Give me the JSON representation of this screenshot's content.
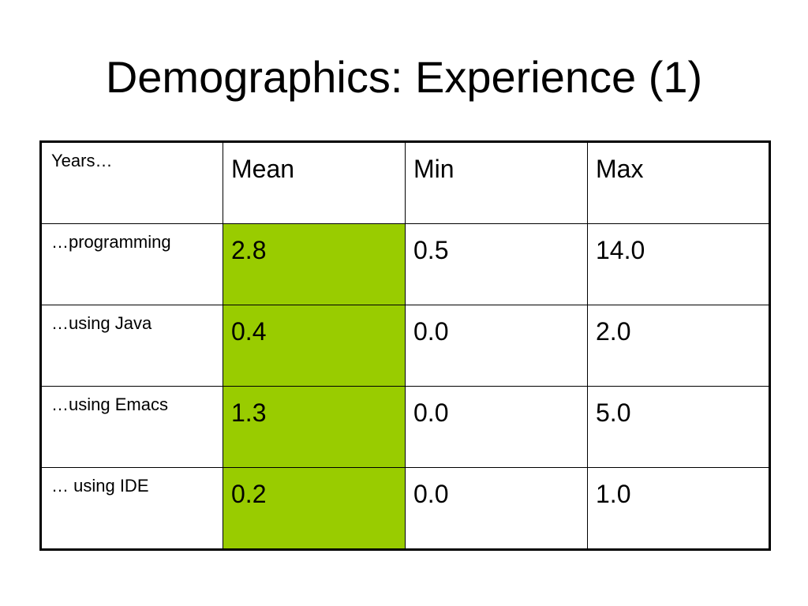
{
  "title": "Demographics: Experience (1)",
  "highlight_color": "#99cc00",
  "table": {
    "headers": {
      "label": "Years…",
      "mean": "Mean",
      "min": "Min",
      "max": "Max"
    },
    "rows": [
      {
        "label": "…programming",
        "mean": "2.8",
        "min": "0.5",
        "max": "14.0"
      },
      {
        "label": "…using Java",
        "mean": "0.4",
        "min": "0.0",
        "max": "2.0"
      },
      {
        "label": "…using Emacs",
        "mean": "1.3",
        "min": "0.0",
        "max": "5.0"
      },
      {
        "label": "… using IDE",
        "mean": "0.2",
        "min": "0.0",
        "max": "1.0"
      }
    ]
  }
}
